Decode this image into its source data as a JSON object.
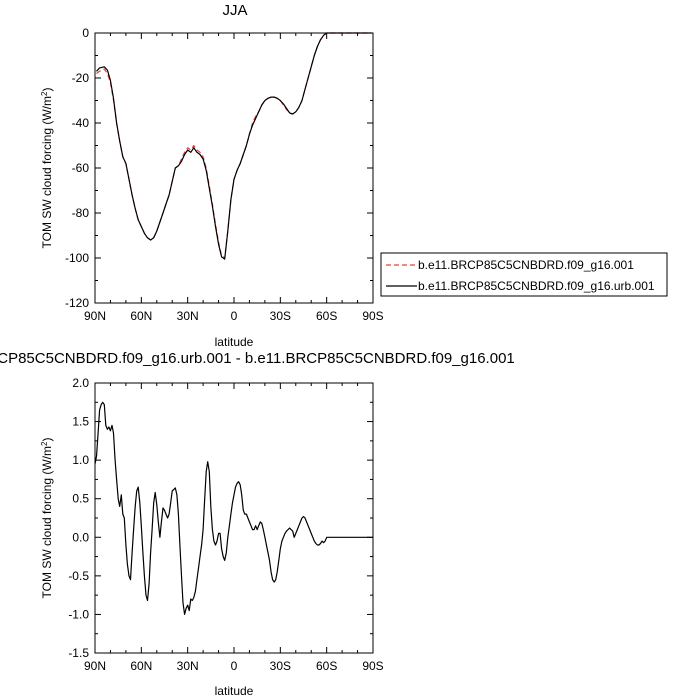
{
  "chart_data": [
    {
      "type": "line",
      "title": "JJA",
      "xlabel": "latitude",
      "ylabel_main": "TOM SW cloud forcing (W/m",
      "ylabel_sup": "2",
      "ylabel_tail": ")",
      "xlim": [
        90,
        -90
      ],
      "ylim": [
        -120,
        0
      ],
      "xticks": [
        90,
        60,
        30,
        0,
        -30,
        -60,
        -90
      ],
      "xtick_labels": [
        "90N",
        "60N",
        "30N",
        "0",
        "30S",
        "60S",
        "90S"
      ],
      "yticks": [
        0,
        -20,
        -40,
        -60,
        -80,
        -100,
        -120
      ],
      "ytick_labels": [
        "0",
        "-20",
        "-40",
        "-60",
        "-80",
        "-100",
        "-120"
      ],
      "legend_position": "right",
      "series": [
        {
          "name": "b.e11.BRCP85C5CNBDRD.f09_g16.001",
          "color": "#e8413c",
          "dashed": true,
          "x": [
            89,
            87,
            84,
            82,
            80,
            78,
            76,
            74,
            72,
            70,
            68,
            66,
            64,
            62,
            60,
            58,
            56,
            54,
            52,
            50,
            48,
            46,
            44,
            42,
            40,
            38,
            36,
            34,
            32,
            30,
            28,
            26,
            24,
            22,
            20,
            18,
            16,
            14,
            12,
            10,
            8,
            6,
            4,
            2,
            0,
            -2,
            -4,
            -6,
            -8,
            -10,
            -12,
            -14,
            -16,
            -18,
            -20,
            -22,
            -24,
            -26,
            -28,
            -30,
            -32,
            -34,
            -36,
            -38,
            -40,
            -42,
            -44,
            -46,
            -48,
            -50,
            -52,
            -54,
            -56,
            -58,
            -60,
            -62,
            -64,
            -66,
            -68,
            -70,
            -75,
            -80,
            -85,
            -89
          ],
          "y": [
            -18,
            -17,
            -16,
            -18,
            -22,
            -30,
            -40,
            -48,
            -55,
            -58,
            -65,
            -72,
            -78,
            -83,
            -86,
            -89,
            -91,
            -92,
            -91,
            -88,
            -84,
            -80,
            -76,
            -72,
            -66,
            -60,
            -59,
            -56,
            -53,
            -51,
            -52,
            -50,
            -52,
            -53,
            -55,
            -60,
            -68,
            -76,
            -85,
            -93,
            -99,
            -100,
            -88,
            -74,
            -65,
            -61,
            -58,
            -54,
            -50,
            -45,
            -40,
            -37,
            -35,
            -32,
            -30,
            -29,
            -28.5,
            -28.5,
            -29,
            -30,
            -32,
            -34,
            -35.5,
            -36,
            -35,
            -33,
            -30,
            -25,
            -20,
            -15,
            -10,
            -6,
            -3,
            -1,
            0,
            0,
            0,
            0,
            0,
            0,
            0,
            0,
            0,
            0
          ]
        },
        {
          "name": "b.e11.BRCP85C5CNBDRD.f09_g16.urb.001",
          "color": "#000000",
          "dashed": false,
          "x": [
            89,
            87,
            84,
            82,
            80,
            78,
            76,
            74,
            72,
            70,
            68,
            66,
            64,
            62,
            60,
            58,
            56,
            54,
            52,
            50,
            48,
            46,
            44,
            42,
            40,
            38,
            36,
            34,
            32,
            30,
            28,
            26,
            24,
            22,
            20,
            18,
            16,
            14,
            12,
            10,
            8,
            6,
            4,
            2,
            0,
            -2,
            -4,
            -6,
            -8,
            -10,
            -12,
            -14,
            -16,
            -18,
            -20,
            -22,
            -24,
            -26,
            -28,
            -30,
            -32,
            -34,
            -36,
            -38,
            -40,
            -42,
            -44,
            -46,
            -48,
            -50,
            -52,
            -54,
            -56,
            -58,
            -60,
            -62,
            -64,
            -66,
            -68,
            -70,
            -75,
            -80,
            -85,
            -89
          ],
          "y": [
            -17,
            -15.5,
            -15,
            -16.5,
            -21,
            -29,
            -40,
            -48,
            -55,
            -58,
            -65,
            -72,
            -78,
            -83,
            -86,
            -89,
            -91,
            -92,
            -91,
            -88,
            -84,
            -80,
            -76,
            -72,
            -66,
            -60,
            -59,
            -57,
            -54,
            -52,
            -53,
            -51,
            -53,
            -54,
            -56,
            -61,
            -69,
            -77,
            -86,
            -94,
            -99.5,
            -100.5,
            -88,
            -74,
            -65,
            -61,
            -58,
            -54,
            -50,
            -45,
            -41,
            -38,
            -35,
            -32,
            -30,
            -29,
            -28.5,
            -28.5,
            -29,
            -30,
            -31.5,
            -33.5,
            -35.5,
            -36,
            -35,
            -33,
            -30,
            -25,
            -20,
            -15,
            -10,
            -6,
            -3,
            -1,
            0,
            0,
            0,
            0,
            0,
            0,
            0,
            0,
            0,
            0
          ]
        }
      ]
    },
    {
      "type": "line",
      "title": "CP85C5CNBDRD.f09_g16.urb.001 - b.e11.BRCP85C5CNBDRD.f09_g16.001",
      "xlabel": "latitude",
      "ylabel_main": "TOM SW cloud forcing (W/m",
      "ylabel_sup": "2",
      "ylabel_tail": ")",
      "xlim": [
        90,
        -90
      ],
      "ylim": [
        -1.5,
        2.0
      ],
      "xticks": [
        90,
        60,
        30,
        0,
        -30,
        -60,
        -90
      ],
      "xtick_labels": [
        "90N",
        "60N",
        "30N",
        "0",
        "30S",
        "60S",
        "90S"
      ],
      "yticks": [
        2.0,
        1.5,
        1.0,
        0.5,
        0.0,
        -0.5,
        -1.0,
        -1.5
      ],
      "ytick_labels": [
        "2.0",
        "1.5",
        "1.0",
        "0.5",
        "0.0",
        "-0.5",
        "-1.0",
        "-1.5"
      ],
      "series": [
        {
          "color": "#000000",
          "dashed": false,
          "x": [
            90,
            89,
            88,
            87,
            86,
            85,
            84,
            83,
            82,
            81,
            80,
            79,
            78,
            77,
            76,
            75,
            74,
            73,
            72,
            71,
            70,
            69,
            68,
            67,
            66,
            65,
            64,
            63,
            62,
            61,
            60,
            59,
            58,
            57,
            56,
            55,
            54,
            53,
            52,
            51,
            50,
            49,
            48,
            47,
            46,
            45,
            44,
            43,
            42,
            41,
            40,
            39,
            38,
            37,
            36,
            35,
            34,
            33,
            32,
            31,
            30,
            29,
            28,
            27,
            26,
            25,
            24,
            23,
            22,
            21,
            20,
            19,
            18,
            17,
            16,
            15,
            14,
            13,
            12,
            11,
            10,
            9,
            8,
            7,
            6,
            5,
            4,
            3,
            2,
            1,
            0,
            -1,
            -2,
            -3,
            -4,
            -5,
            -6,
            -7,
            -8,
            -9,
            -10,
            -11,
            -12,
            -13,
            -14,
            -15,
            -16,
            -17,
            -18,
            -19,
            -20,
            -21,
            -22,
            -23,
            -24,
            -25,
            -26,
            -27,
            -28,
            -29,
            -30,
            -31,
            -32,
            -33,
            -34,
            -35,
            -36,
            -37,
            -38,
            -39,
            -40,
            -41,
            -42,
            -43,
            -44,
            -45,
            -46,
            -47,
            -48,
            -49,
            -50,
            -51,
            -52,
            -53,
            -54,
            -55,
            -56,
            -57,
            -58,
            -59,
            -60,
            -62,
            -65,
            -70,
            -75,
            -80,
            -85,
            -90
          ],
          "y": [
            0.95,
            1.05,
            1.35,
            1.65,
            1.72,
            1.75,
            1.72,
            1.45,
            1.4,
            1.43,
            1.38,
            1.45,
            1.35,
            1.0,
            0.75,
            0.5,
            0.4,
            0.55,
            0.3,
            0.25,
            -0.1,
            -0.35,
            -0.5,
            -0.55,
            -0.2,
            0.1,
            0.4,
            0.6,
            0.65,
            0.45,
            0.15,
            -0.2,
            -0.5,
            -0.75,
            -0.82,
            -0.6,
            -0.2,
            0.1,
            0.45,
            0.58,
            0.42,
            0.2,
            0.0,
            0.2,
            0.38,
            0.35,
            0.3,
            0.25,
            0.3,
            0.45,
            0.6,
            0.62,
            0.64,
            0.55,
            0.3,
            -0.1,
            -0.5,
            -0.85,
            -1.0,
            -0.92,
            -0.88,
            -0.95,
            -0.8,
            -0.82,
            -0.78,
            -0.7,
            -0.55,
            -0.4,
            -0.25,
            -0.1,
            0.1,
            0.5,
            0.85,
            0.98,
            0.85,
            0.4,
            0.1,
            -0.05,
            -0.1,
            -0.05,
            0.05,
            0.05,
            -0.15,
            -0.25,
            -0.3,
            -0.2,
            0.0,
            0.15,
            0.3,
            0.45,
            0.55,
            0.65,
            0.7,
            0.72,
            0.68,
            0.55,
            0.35,
            0.3,
            0.3,
            0.25,
            0.2,
            0.15,
            0.1,
            0.1,
            0.15,
            0.1,
            0.15,
            0.2,
            0.18,
            0.1,
            0.0,
            -0.1,
            -0.2,
            -0.3,
            -0.45,
            -0.55,
            -0.58,
            -0.55,
            -0.45,
            -0.3,
            -0.15,
            -0.05,
            0.0,
            0.05,
            0.08,
            0.1,
            0.12,
            0.1,
            0.08,
            0.0,
            0.05,
            0.1,
            0.15,
            0.2,
            0.25,
            0.27,
            0.25,
            0.2,
            0.15,
            0.1,
            0.05,
            0.0,
            -0.05,
            -0.08,
            -0.1,
            -0.1,
            -0.08,
            -0.05,
            -0.07,
            -0.05,
            0.0,
            0.0,
            0.0,
            0.0,
            0.0,
            0.0,
            0.0,
            0.0
          ]
        }
      ]
    }
  ]
}
